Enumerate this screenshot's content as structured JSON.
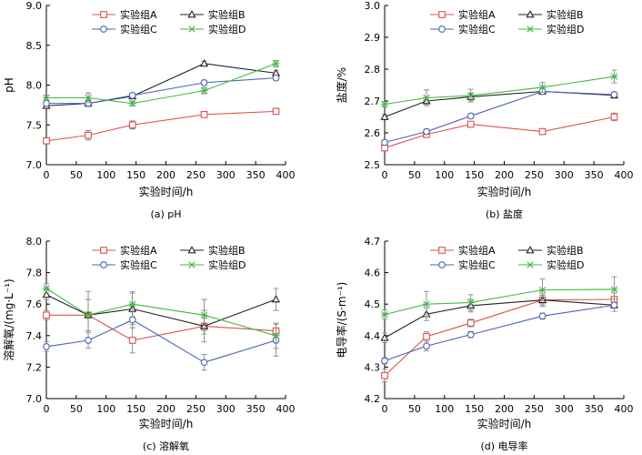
{
  "colors": {
    "A": "#d9534f",
    "B": "#222222",
    "C": "#4a63b5",
    "D": "#44b844",
    "axis": "#000000",
    "errorbar": "#888888"
  },
  "chart_data": [
    {
      "id": "ph",
      "type": "line",
      "caption": "(a) pH",
      "xlabel": "实验时间/h",
      "ylabel": "pH",
      "xlim": [
        0,
        400
      ],
      "ylim": [
        7.0,
        9.0
      ],
      "xticks": [
        0,
        50,
        100,
        150,
        200,
        250,
        300,
        350,
        400
      ],
      "yticks": [
        7.0,
        7.5,
        8.0,
        8.5,
        9.0
      ],
      "ytick_decimals": 1,
      "legend_position": "top",
      "x": [
        0,
        70,
        144,
        264,
        384
      ],
      "series": [
        {
          "name": "实验组A",
          "key": "A",
          "marker": "square",
          "values": [
            7.3,
            7.37,
            7.5,
            7.63,
            7.67
          ],
          "errors": [
            0.03,
            0.06,
            0.05,
            0.03,
            0.02
          ]
        },
        {
          "name": "实验组B",
          "key": "B",
          "marker": "triangle",
          "values": [
            7.74,
            7.77,
            7.86,
            8.27,
            8.15
          ],
          "errors": [
            0.03,
            0.04,
            0.03,
            0.03,
            0.03
          ]
        },
        {
          "name": "实验组C",
          "key": "C",
          "marker": "circle",
          "values": [
            7.77,
            7.77,
            7.87,
            8.03,
            8.09
          ],
          "errors": [
            0.03,
            0.03,
            0.03,
            0.03,
            0.03
          ]
        },
        {
          "name": "实验组D",
          "key": "D",
          "marker": "cross",
          "values": [
            7.84,
            7.84,
            7.77,
            7.93,
            8.27
          ],
          "errors": [
            0.03,
            0.06,
            0.03,
            0.04,
            0.04
          ]
        }
      ]
    },
    {
      "id": "salinity",
      "type": "line",
      "caption": "(b) 盐度",
      "xlabel": "实验时间/h",
      "ylabel": "盐度/%",
      "xlim": [
        0,
        400
      ],
      "ylim": [
        2.5,
        3.0
      ],
      "xticks": [
        0,
        50,
        100,
        150,
        200,
        250,
        300,
        350,
        400
      ],
      "yticks": [
        2.5,
        2.6,
        2.7,
        2.8,
        2.9,
        3.0
      ],
      "ytick_decimals": 1,
      "legend_position": "top",
      "x": [
        0,
        70,
        144,
        264,
        384
      ],
      "series": [
        {
          "name": "实验组A",
          "key": "A",
          "marker": "square",
          "values": [
            2.553,
            2.595,
            2.627,
            2.604,
            2.65
          ],
          "errors": [
            0.008,
            0.008,
            0.008,
            0.008,
            0.012
          ]
        },
        {
          "name": "实验组B",
          "key": "B",
          "marker": "triangle",
          "values": [
            2.65,
            2.7,
            2.713,
            2.73,
            2.718
          ],
          "errors": [
            0.008,
            0.01,
            0.012,
            0.008,
            0.01
          ]
        },
        {
          "name": "实验组C",
          "key": "C",
          "marker": "circle",
          "values": [
            2.57,
            2.604,
            2.653,
            2.73,
            2.72
          ],
          "errors": [
            0.008,
            0.008,
            0.008,
            0.008,
            0.008
          ]
        },
        {
          "name": "实验组D",
          "key": "D",
          "marker": "cross",
          "values": [
            2.69,
            2.71,
            2.717,
            2.743,
            2.777
          ],
          "errors": [
            0.008,
            0.025,
            0.02,
            0.015,
            0.02
          ]
        }
      ]
    },
    {
      "id": "do",
      "type": "line",
      "caption": "(c) 溶解氧",
      "xlabel": "实验时间/h",
      "ylabel": "溶解氧/(mg·L⁻¹)",
      "xlim": [
        0,
        400
      ],
      "ylim": [
        7.0,
        8.0
      ],
      "xticks": [
        0,
        50,
        100,
        150,
        200,
        250,
        300,
        350,
        400
      ],
      "yticks": [
        7.0,
        7.2,
        7.4,
        7.6,
        7.8,
        8.0
      ],
      "ytick_decimals": 1,
      "legend_position": "top",
      "x": [
        0,
        70,
        144,
        264,
        384
      ],
      "series": [
        {
          "name": "实验组A",
          "key": "A",
          "marker": "square",
          "values": [
            7.53,
            7.53,
            7.37,
            7.46,
            7.43
          ],
          "errors": [
            0.03,
            0.1,
            0.08,
            0.05,
            0.05
          ]
        },
        {
          "name": "实验组B",
          "key": "B",
          "marker": "triangle",
          "values": [
            7.66,
            7.53,
            7.57,
            7.46,
            7.63
          ],
          "errors": [
            0.03,
            0.15,
            0.1,
            0.1,
            0.07
          ]
        },
        {
          "name": "实验组C",
          "key": "C",
          "marker": "circle",
          "values": [
            7.33,
            7.37,
            7.5,
            7.23,
            7.37
          ],
          "errors": [
            0.03,
            0.05,
            0.05,
            0.05,
            0.1
          ]
        },
        {
          "name": "实验组D",
          "key": "D",
          "marker": "cross",
          "values": [
            7.7,
            7.53,
            7.6,
            7.53,
            7.4
          ],
          "errors": [
            0.03,
            0.1,
            0.08,
            0.1,
            0.08
          ]
        }
      ]
    },
    {
      "id": "conductivity",
      "type": "line",
      "caption": "(d) 电导率",
      "xlabel": "实验时间/h",
      "ylabel": "电导率/(S·m⁻¹)",
      "xlim": [
        0,
        400
      ],
      "ylim": [
        4.2,
        4.7
      ],
      "xticks": [
        0,
        50,
        100,
        150,
        200,
        250,
        300,
        350,
        400
      ],
      "yticks": [
        4.2,
        4.3,
        4.4,
        4.5,
        4.6,
        4.7
      ],
      "ytick_decimals": 1,
      "legend_position": "top",
      "x": [
        0,
        70,
        144,
        264,
        384
      ],
      "series": [
        {
          "name": "实验组A",
          "key": "A",
          "marker": "square",
          "values": [
            4.273,
            4.397,
            4.44,
            4.513,
            4.515
          ],
          "errors": [
            0.02,
            0.015,
            0.012,
            0.015,
            0.02
          ]
        },
        {
          "name": "实验组B",
          "key": "B",
          "marker": "triangle",
          "values": [
            4.393,
            4.468,
            4.495,
            4.513,
            4.497
          ],
          "errors": [
            0.015,
            0.02,
            0.02,
            0.02,
            0.02
          ]
        },
        {
          "name": "实验组C",
          "key": "C",
          "marker": "circle",
          "values": [
            4.32,
            4.367,
            4.403,
            4.462,
            4.497
          ],
          "errors": [
            0.01,
            0.015,
            0.01,
            0.01,
            0.01
          ]
        },
        {
          "name": "实验组D",
          "key": "D",
          "marker": "cross",
          "values": [
            4.467,
            4.5,
            4.505,
            4.545,
            4.547
          ],
          "errors": [
            0.015,
            0.04,
            0.025,
            0.035,
            0.04
          ]
        }
      ]
    }
  ]
}
